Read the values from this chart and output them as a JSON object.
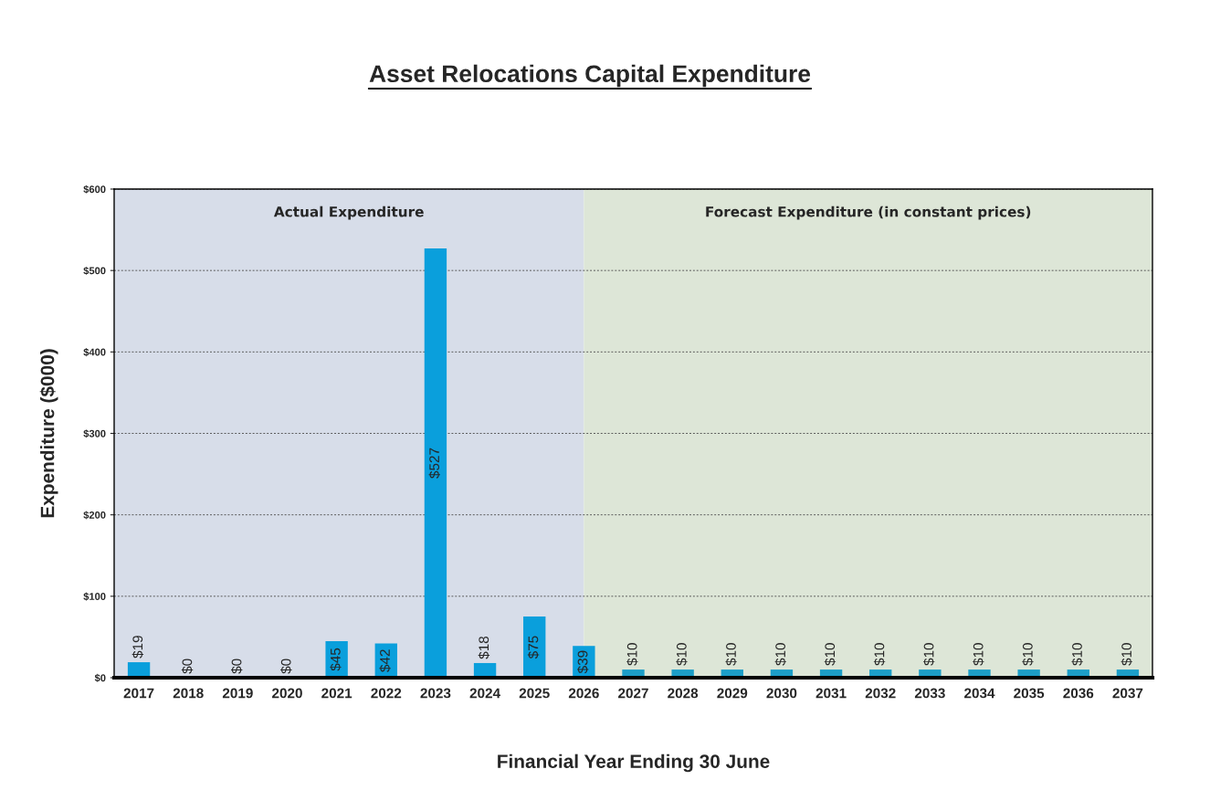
{
  "chart_data": {
    "type": "bar",
    "title": "Asset Relocations Capital Expenditure",
    "xlabel": "Financial Year Ending 30 June",
    "ylabel": "Expenditure ($000)",
    "categories": [
      "2017",
      "2018",
      "2019",
      "2020",
      "2021",
      "2022",
      "2023",
      "2024",
      "2025",
      "2026",
      "2027",
      "2028",
      "2029",
      "2030",
      "2031",
      "2032",
      "2033",
      "2034",
      "2035",
      "2036",
      "2037"
    ],
    "values": [
      19,
      0,
      0,
      0,
      45,
      42,
      527,
      18,
      75,
      39,
      10,
      10,
      10,
      10,
      10,
      10,
      10,
      10,
      10,
      10,
      10
    ],
    "colors": [
      "#0a9fdc",
      "#0a9fdc",
      "#0a9fdc",
      "#0a9fdc",
      "#0a9fdc",
      "#0a9fdc",
      "#0a9fdc",
      "#0a9fdc",
      "#0a9fdc",
      "#0a9fdc",
      "#1c9ec8",
      "#1c9ec8",
      "#1c9ec8",
      "#1c9ec8",
      "#1c9ec8",
      "#1c9ec8",
      "#1c9ec8",
      "#1c9ec8",
      "#1c9ec8",
      "#1c9ec8",
      "#1c9ec8"
    ],
    "value_labels": [
      "$19",
      "$0",
      "$0",
      "$0",
      "$45",
      "$42",
      "$527",
      "$18",
      "$75",
      "$39",
      "$10",
      "$10",
      "$10",
      "$10",
      "$10",
      "$10",
      "$10",
      "$10",
      "$10",
      "$10",
      "$10"
    ],
    "ylim": [
      0,
      600
    ],
    "yticks": [
      {
        "value": 0,
        "label": "$0"
      },
      {
        "value": 100,
        "label": "$100"
      },
      {
        "value": 200,
        "label": "$200"
      },
      {
        "value": 300,
        "label": "$300"
      },
      {
        "value": 400,
        "label": "$400"
      },
      {
        "value": 500,
        "label": "$500"
      },
      {
        "value": 600,
        "label": "$600"
      }
    ],
    "grid": "y",
    "bands": [
      {
        "axis": "x",
        "from": "2017",
        "to": "2026",
        "label": "Actual Expenditure",
        "color": "#d7dde9"
      },
      {
        "axis": "x",
        "from": "2026",
        "to": "2037",
        "label": "Forecast Expenditure (in constant prices)",
        "color": "#dde6d7"
      }
    ]
  }
}
